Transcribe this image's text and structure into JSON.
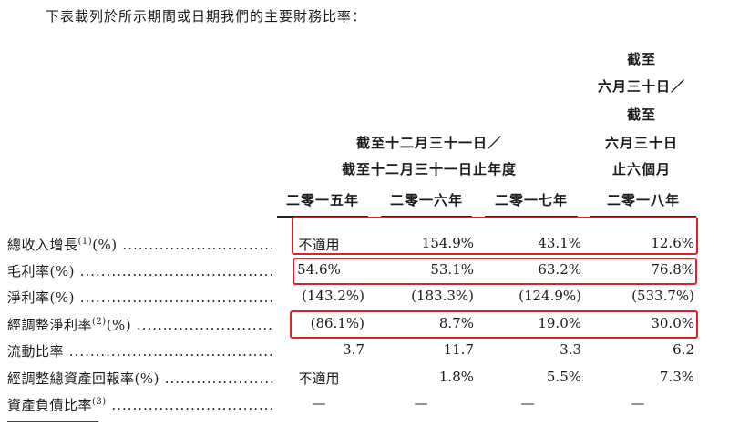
{
  "intro": "下表載列於所示期間或日期我們的主要財務比率：",
  "headers": {
    "group_line1": "截至十二月三十一日／",
    "group_line2": "截至十二月三十一日止年度",
    "last_line1": "截至",
    "last_line2": "六月三十日／",
    "last_line3": "截至",
    "last_line4": "六月三十日",
    "last_line5": "止六個月"
  },
  "years": [
    "二零一五年",
    "二零一六年",
    "二零一七年",
    "二零一八年"
  ],
  "rows": [
    {
      "label": "總收入增長",
      "note": "(1)",
      "unit": "(%)",
      "values": [
        "不適用",
        "154.9%",
        "43.1%",
        "12.6%"
      ]
    },
    {
      "label": "毛利率",
      "note": "",
      "unit": "(%)",
      "values": [
        "54.6%",
        "53.1%",
        "63.2%",
        "76.8%"
      ]
    },
    {
      "label": "淨利率",
      "note": "",
      "unit": "(%)",
      "values": [
        "(143.2%)",
        "(183.3%)",
        "(124.9%)",
        "(533.7%)"
      ]
    },
    {
      "label": "經調整淨利率",
      "note": "(2)",
      "unit": "(%)",
      "values": [
        "(86.1%)",
        "8.7%",
        "19.0%",
        "30.0%"
      ]
    },
    {
      "label": "流動比率",
      "note": "",
      "unit": "",
      "values": [
        "3.7",
        "11.7",
        "3.3",
        "6.2"
      ]
    },
    {
      "label": "經調整總資產回報率",
      "note": "",
      "unit": "(%)",
      "values": [
        "不適用",
        "1.8%",
        "5.5%",
        "7.3%"
      ]
    },
    {
      "label": "資產負債比率",
      "note": "(3)",
      "unit": "",
      "values": [
        "—",
        "—",
        "—",
        "—"
      ]
    }
  ]
}
